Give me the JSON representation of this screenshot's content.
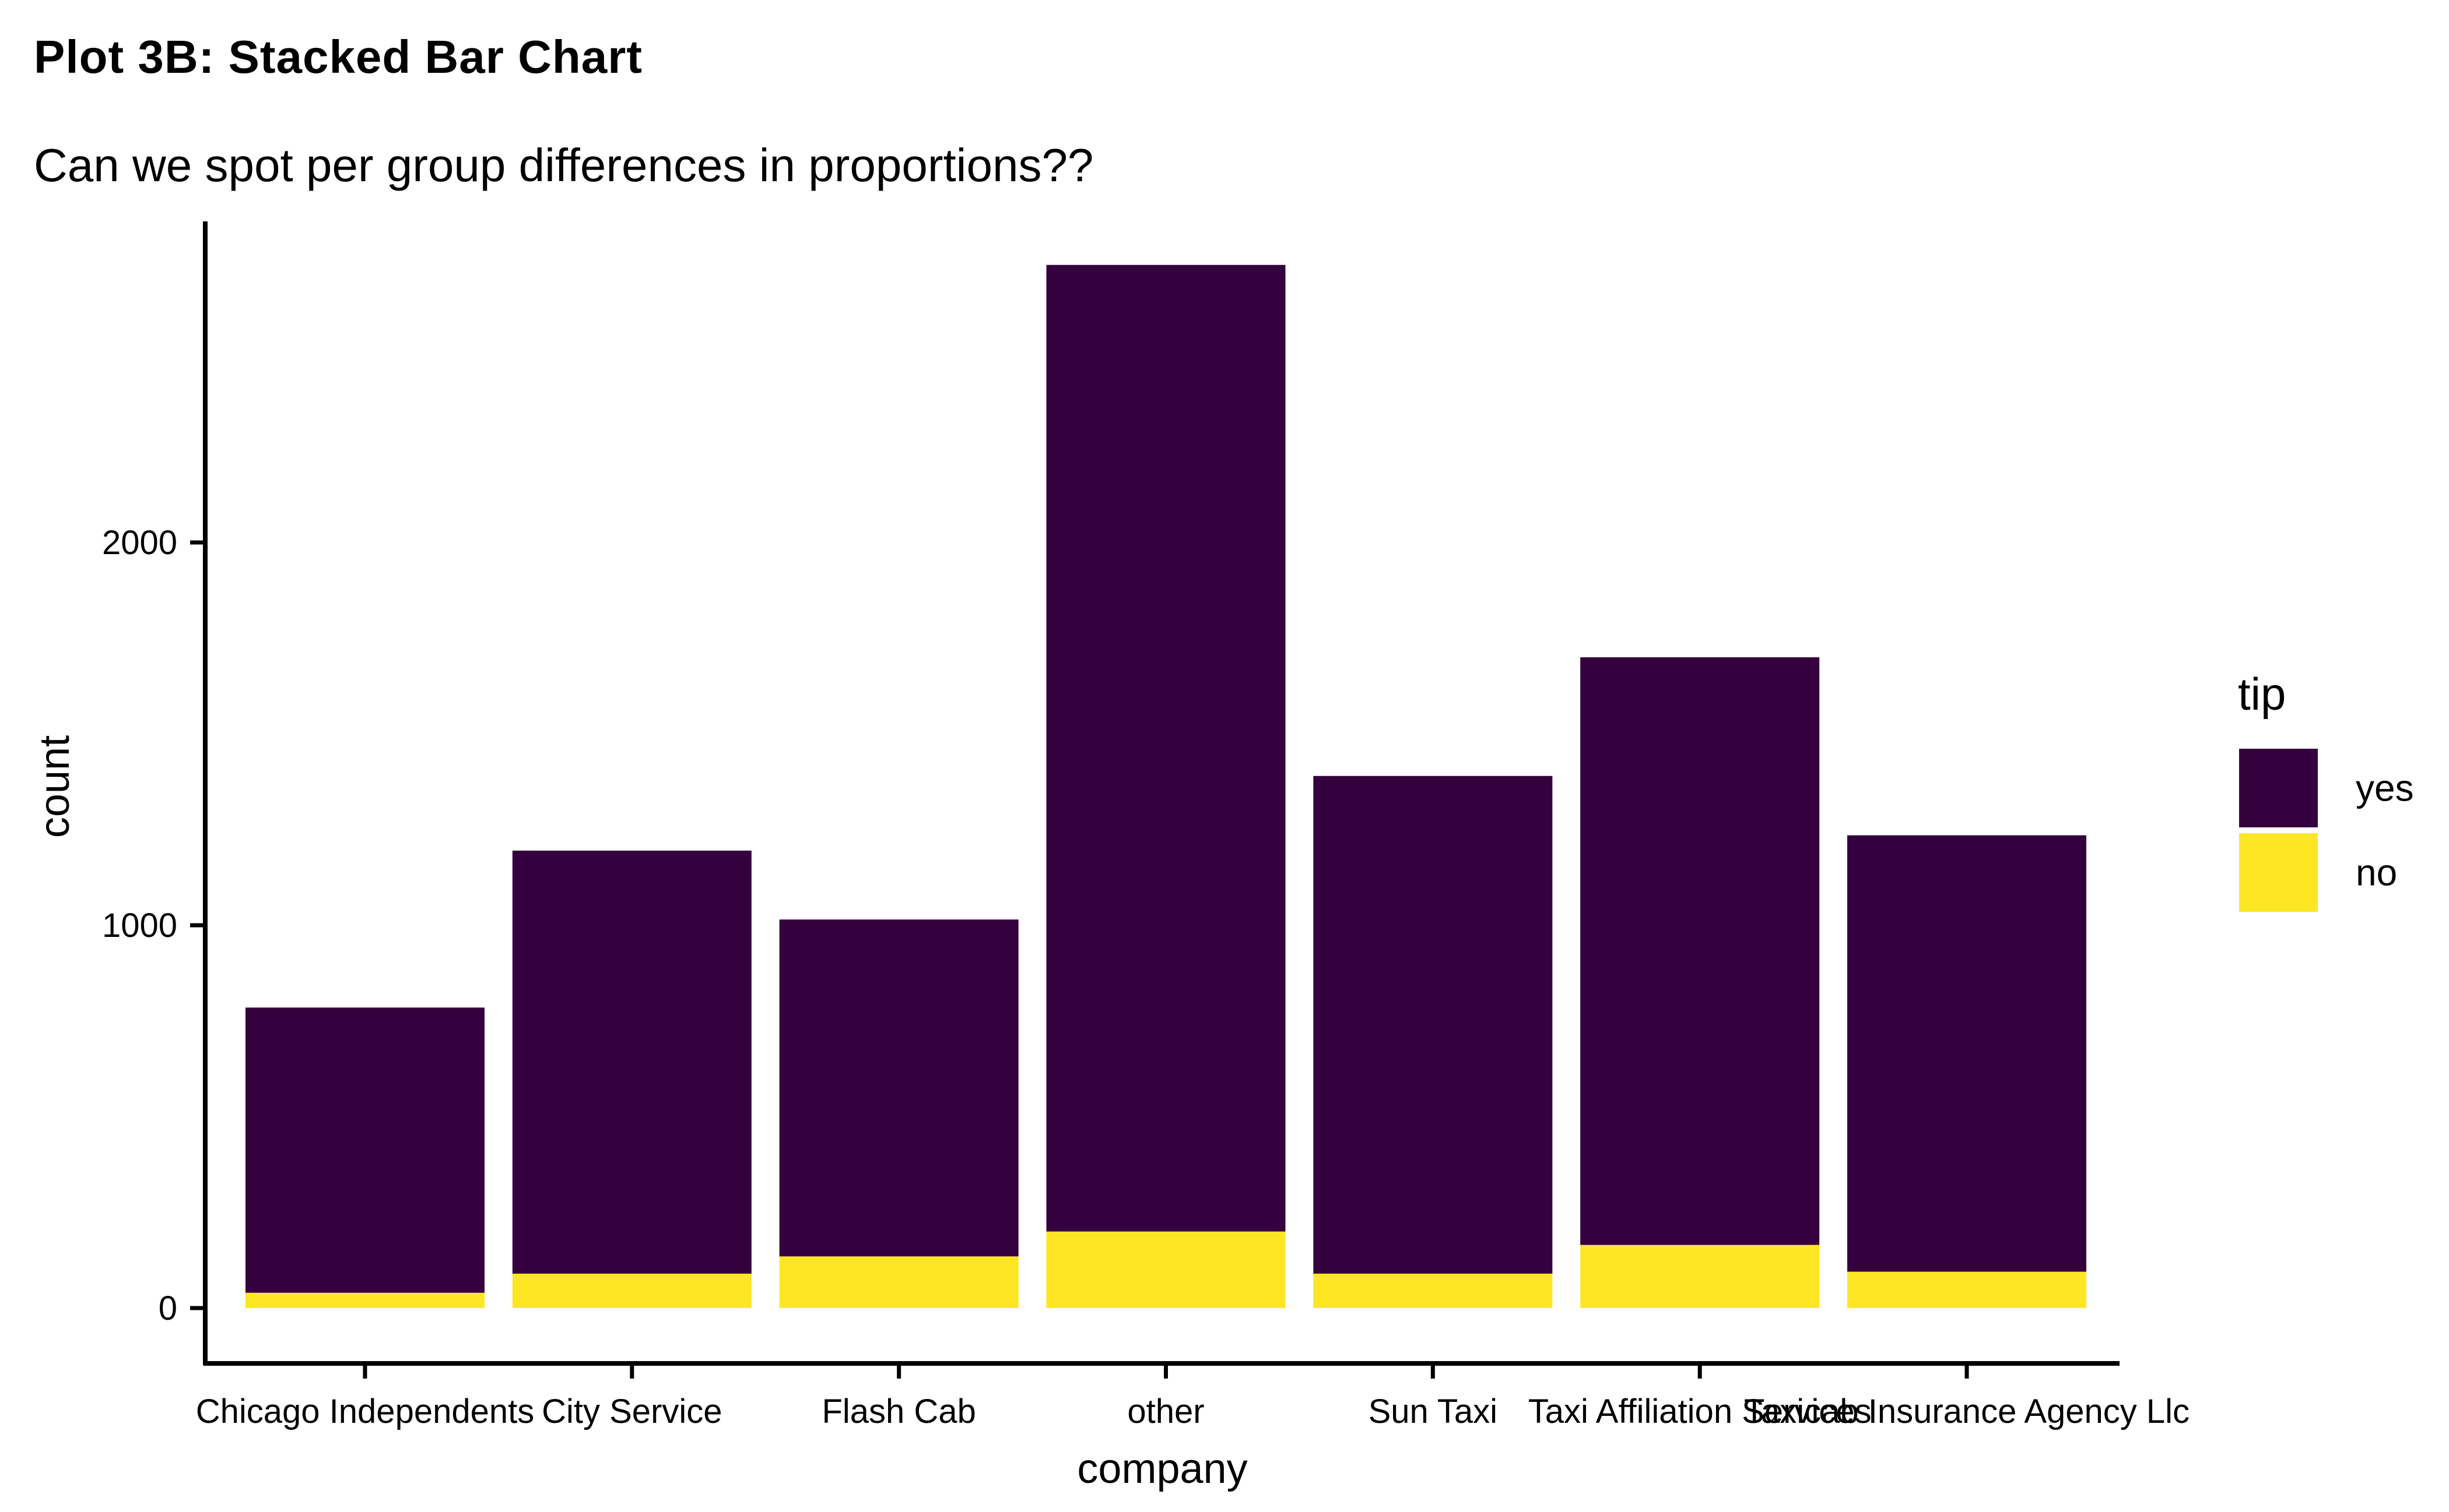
{
  "chart_data": {
    "type": "bar",
    "stacked": true,
    "title": "Plot 3B: Stacked Bar Chart",
    "subtitle": "Can we spot per group differences in proportions??",
    "xlabel": "company",
    "ylabel": "count",
    "ylim": [
      -130,
      2850
    ],
    "yticks": [
      0,
      1000,
      2000
    ],
    "categories": [
      "Chicago Independents",
      "City Service",
      "Flash Cab",
      "other",
      "Sun Taxi",
      "Taxi Affiliation Services",
      "Taxicab Insurance Agency Llc"
    ],
    "series": [
      {
        "name": "yes",
        "color": "#35003e",
        "values": [
          745,
          1105,
          880,
          2525,
          1300,
          1535,
          1140
        ]
      },
      {
        "name": "no",
        "color": "#fde725",
        "values": [
          40,
          90,
          135,
          200,
          90,
          165,
          95
        ]
      }
    ],
    "legend": {
      "title": "tip",
      "position": "right",
      "entries": [
        "yes",
        "no"
      ]
    },
    "grid": false
  }
}
